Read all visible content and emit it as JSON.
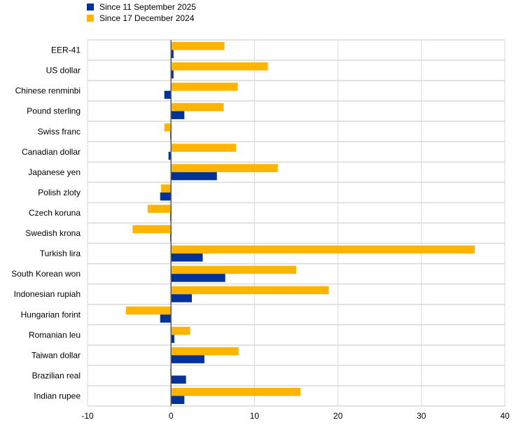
{
  "chart_data": {
    "type": "bar",
    "orientation": "horizontal",
    "categories": [
      "EER-41",
      "US dollar",
      "Chinese renminbi",
      "Pound sterling",
      "Swiss franc",
      "Canadian dollar",
      "Japanese yen",
      "Polish zloty",
      "Czech koruna",
      "Swedish krona",
      "Turkish lira",
      "South Korean won",
      "Indonesian rupiah",
      "Hungarian forint",
      "Romanian leu",
      "Taiwan dollar",
      "Brazilian real",
      "Indian rupee"
    ],
    "series": [
      {
        "name": "Since 11 September 2025",
        "color": "#003299",
        "values": [
          0.3,
          0.3,
          -0.8,
          1.6,
          -0.1,
          -0.3,
          5.5,
          -1.3,
          -0.1,
          -0.1,
          3.8,
          6.5,
          2.5,
          -1.3,
          0.4,
          4.0,
          1.8,
          1.6
        ]
      },
      {
        "name": "Since 17 December 2024",
        "color": "#FFB400",
        "values": [
          6.4,
          11.6,
          8.0,
          6.3,
          -0.8,
          7.8,
          12.8,
          -1.2,
          -2.8,
          -4.6,
          36.4,
          15.0,
          18.9,
          -5.4,
          2.3,
          8.1,
          -0.1,
          15.5
        ]
      }
    ],
    "xlim": [
      -10,
      40
    ],
    "xticks": [
      "-10",
      "0",
      "10",
      "20",
      "30",
      "40"
    ],
    "grid": true,
    "legend": "top-left"
  }
}
